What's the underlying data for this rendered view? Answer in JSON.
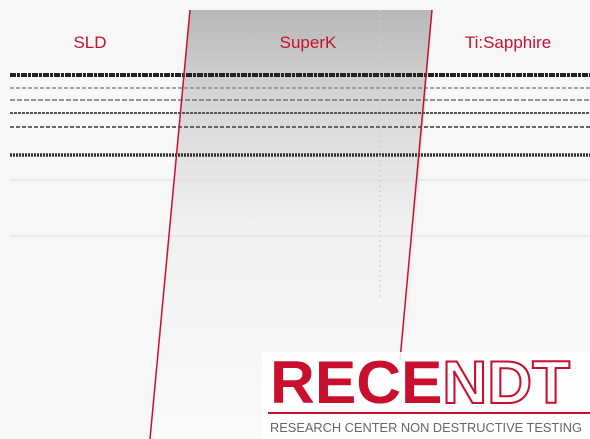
{
  "labels": [
    "SLD",
    "SuperK",
    "Ti:Sapphire"
  ],
  "logo": {
    "name_solid": "RECE",
    "name_outline": "NDT",
    "tagline": "RESEARCH CENTER NON DESTRUCTIVE TESTING"
  }
}
